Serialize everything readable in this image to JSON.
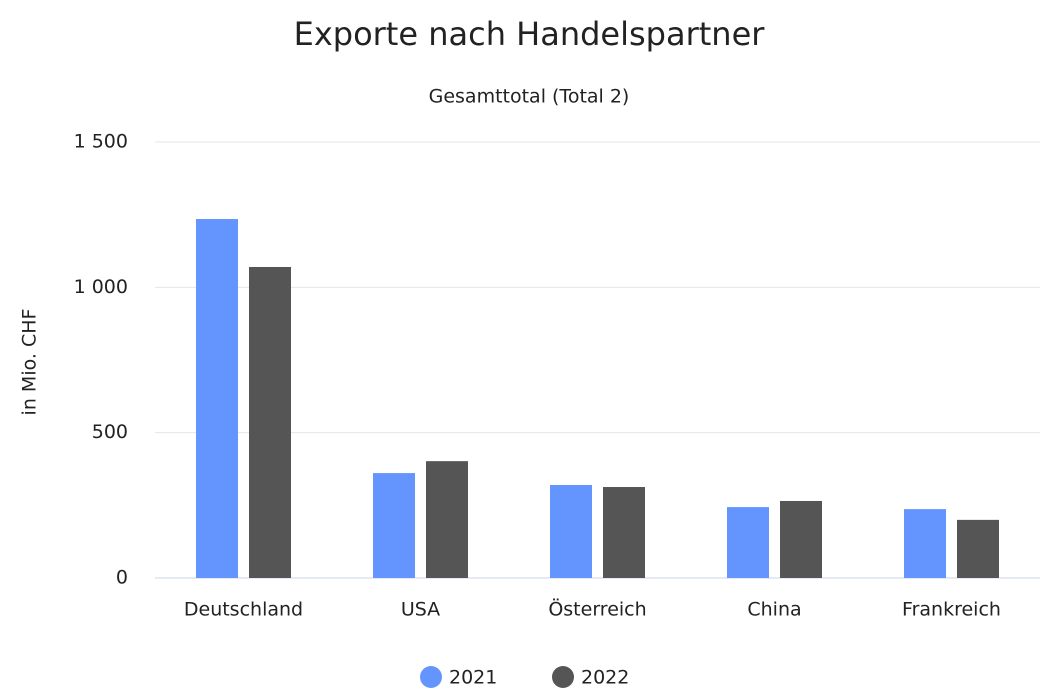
{
  "chart_data": {
    "type": "bar",
    "title": "Exporte nach Handelspartner",
    "subtitle": "Gesamttotal (Total 2)",
    "y_label": "in Mio. CHF",
    "categories": [
      "Deutschland",
      "USA",
      "Österreich",
      "China",
      "Frankreich"
    ],
    "series": [
      {
        "name": "2021",
        "color": "#6495ff",
        "values": [
          1235,
          361,
          320,
          244,
          237
        ]
      },
      {
        "name": "2022",
        "color": "#555555",
        "values": [
          1070,
          402,
          313,
          265,
          200
        ]
      }
    ],
    "ylim": [
      0,
      1500
    ],
    "yticks": [
      0,
      500,
      {
        "value": 1000,
        "label": "1 000"
      },
      {
        "value": 1500,
        "label": "1 500"
      }
    ],
    "grid": true,
    "legend": "bottom"
  }
}
